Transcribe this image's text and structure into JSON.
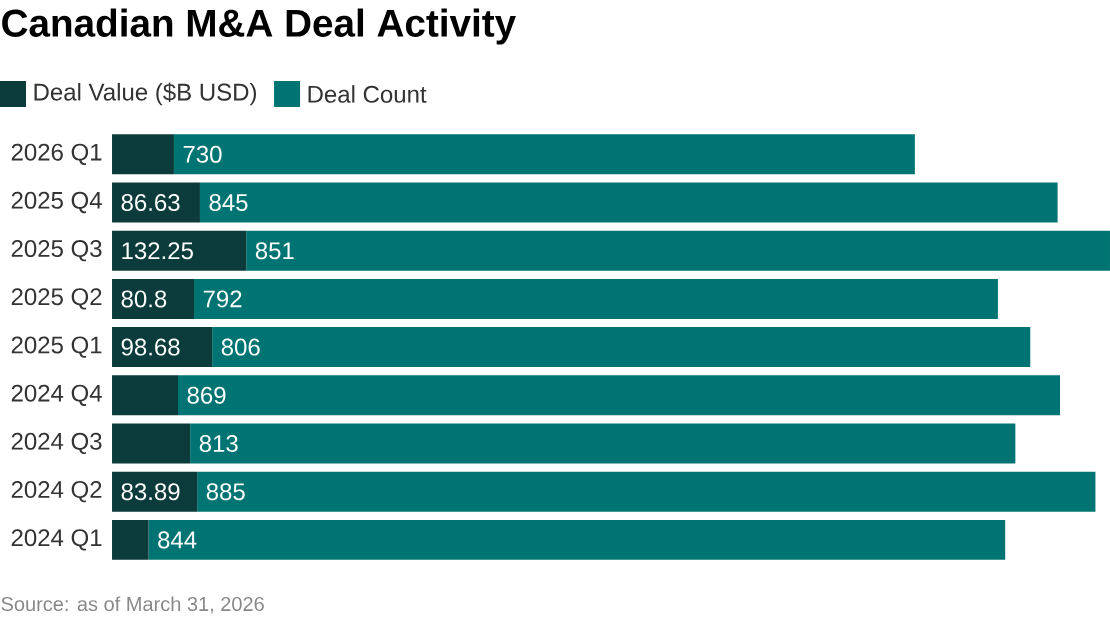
{
  "chart_data": {
    "type": "bar",
    "title": "Canadian M&A Deal Activity",
    "orientation": "horizontal",
    "stacked": true,
    "legend": "top left",
    "categories": [
      "2026 Q1",
      "2025 Q4",
      "2025 Q3",
      "2025 Q2",
      "2025 Q1",
      "2024 Q4",
      "2024 Q3",
      "2024 Q2",
      "2024 Q1"
    ],
    "series": [
      {
        "name": "Deal Value ($B USD)",
        "color": "#0b3b3a",
        "values": [
          61,
          86.63,
          132.25,
          80.8,
          98.68,
          65,
          77,
          83.89,
          36
        ],
        "value_labels": [
          null,
          "86.63",
          "132.25",
          "80.8",
          "98.68",
          null,
          null,
          "83.89",
          null
        ]
      },
      {
        "name": "Deal Count",
        "color": "#007472",
        "values": [
          730,
          845,
          851,
          792,
          806,
          869,
          813,
          885,
          844
        ],
        "value_labels": [
          "730",
          "845",
          "851",
          "792",
          "806",
          "869",
          "813",
          "885",
          "844"
        ]
      }
    ],
    "annotations": [
      "Source: as of March 31, 2026"
    ]
  }
}
